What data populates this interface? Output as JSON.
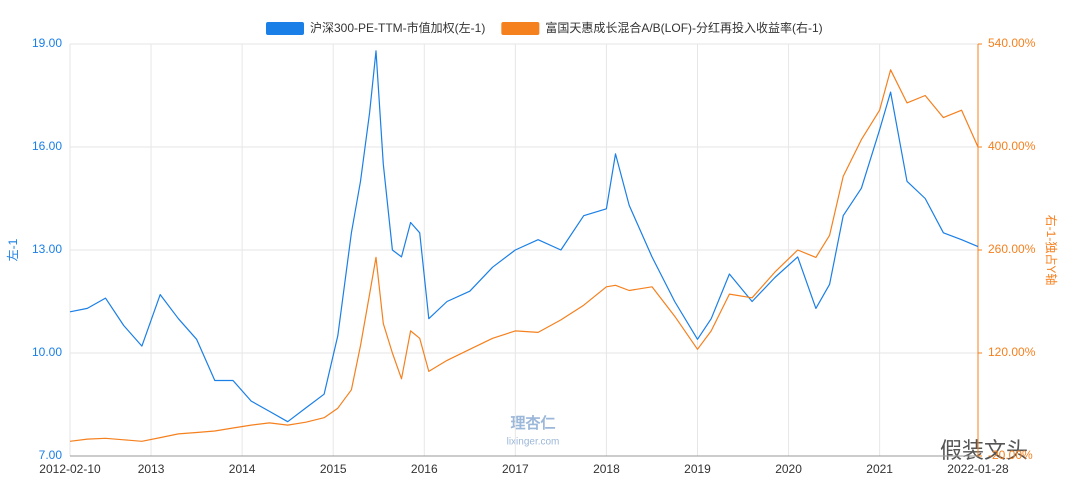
{
  "chart_data": {
    "type": "line",
    "x": [
      2012.11,
      2012.3,
      2012.5,
      2012.7,
      2012.9,
      2013.1,
      2013.3,
      2013.5,
      2013.7,
      2013.9,
      2014.1,
      2014.3,
      2014.5,
      2014.7,
      2014.9,
      2015.05,
      2015.2,
      2015.3,
      2015.4,
      2015.47,
      2015.55,
      2015.65,
      2015.75,
      2015.85,
      2015.95,
      2016.05,
      2016.25,
      2016.5,
      2016.75,
      2017.0,
      2017.25,
      2017.5,
      2017.75,
      2018.0,
      2018.1,
      2018.25,
      2018.5,
      2018.75,
      2019.0,
      2019.15,
      2019.35,
      2019.6,
      2019.85,
      2020.1,
      2020.3,
      2020.45,
      2020.6,
      2020.8,
      2021.0,
      2021.12,
      2021.3,
      2021.5,
      2021.7,
      2021.9,
      2022.08
    ],
    "series": [
      {
        "name": "沪深300-PE-TTM-市值加权(左-1)",
        "color": "#1a7fe6",
        "axis": "y",
        "values": [
          11.2,
          11.3,
          11.6,
          10.8,
          10.2,
          11.7,
          11.0,
          10.4,
          9.2,
          9.2,
          8.6,
          8.3,
          8.0,
          8.4,
          8.8,
          10.5,
          13.5,
          15.0,
          17.0,
          18.8,
          15.5,
          13.0,
          12.8,
          13.8,
          13.5,
          11.0,
          11.5,
          11.8,
          12.5,
          13.0,
          13.3,
          13.0,
          14.0,
          14.2,
          15.8,
          14.3,
          12.8,
          11.5,
          10.4,
          11.0,
          12.3,
          11.5,
          12.2,
          12.8,
          11.3,
          12.0,
          14.0,
          14.8,
          16.5,
          17.6,
          15.0,
          14.5,
          13.5,
          13.3,
          13.1
        ]
      },
      {
        "name": "富国天惠成长混合A/B(LOF)-分红再投入收益率(右-1)",
        "color": "#f5801e",
        "axis": "y2",
        "values": [
          0,
          3,
          4,
          2,
          0,
          5,
          10,
          12,
          14,
          18,
          22,
          25,
          22,
          26,
          32,
          45,
          70,
          130,
          200,
          250,
          160,
          120,
          85,
          150,
          140,
          95,
          110,
          125,
          140,
          150,
          148,
          165,
          185,
          210,
          212,
          205,
          210,
          170,
          125,
          150,
          200,
          195,
          230,
          260,
          250,
          280,
          360,
          410,
          450,
          505,
          460,
          470,
          440,
          450,
          400
        ]
      }
    ],
    "xlim": [
      2012.11,
      2022.08
    ],
    "xticks": [
      {
        "value": 2012.11,
        "label": "2012-02-10"
      },
      2013,
      2014,
      2015,
      2016,
      2017,
      2018,
      2019,
      2020,
      2021,
      {
        "value": 2022.08,
        "label": "2022-01-28"
      }
    ],
    "ylim": [
      7,
      19
    ],
    "yticks": [
      {
        "value": 7,
        "label": "7.00"
      },
      {
        "value": 10,
        "label": "10.00"
      },
      {
        "value": 13,
        "label": "13.00"
      },
      {
        "value": 16,
        "label": "16.00"
      },
      {
        "value": 19,
        "label": "19.00"
      }
    ],
    "y2lim": [
      -20,
      540
    ],
    "y2ticks": [
      {
        "value": -20,
        "label": "-20.00%"
      },
      {
        "value": 120,
        "label": "120.00%"
      },
      {
        "value": 260,
        "label": "260.00%"
      },
      {
        "value": 400,
        "label": "400.00%"
      },
      {
        "value": 540,
        "label": "540.00%"
      }
    ],
    "ylabel": "左-1",
    "y2label": "右-1-独占Y轴",
    "grid": true,
    "legend": "top",
    "watermarks": [
      "理杏仁",
      "lixinger.com",
      "假装文头"
    ]
  }
}
